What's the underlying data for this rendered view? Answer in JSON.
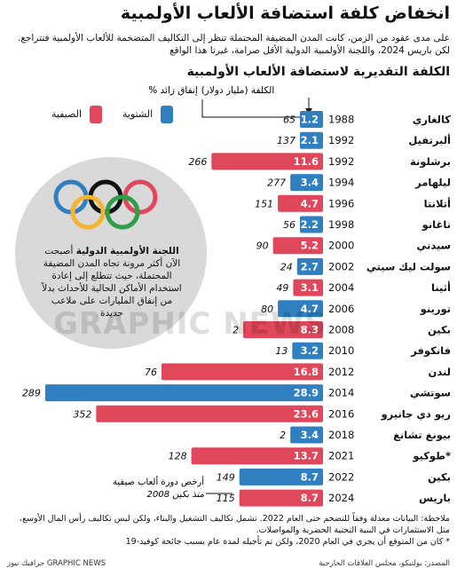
{
  "title": "انخفاض كلفة استضافة الألعاب الأولمبية",
  "intro_line1": "على مدى عقود من الزمن، كانت المدن المضيفة المحتملة تنظر إلى التكاليف المتضخمة للألعاب الأولمبية فتتراجع.",
  "intro_line2": "لكن باريس 2024، واللجنة الأولمبية الدولية الأقل صرامة، غيرتا هذا الواقع",
  "legend": {
    "summer": "الصيفية",
    "winter": "الشتوية",
    "summer_color": "#e0475a",
    "winter_color": "#2f7fc1"
  },
  "ioc_note_bold": "اللجنة الأولمبية الدولية",
  "ioc_note_rest": "أصبحت الآن أكثر مرونة تجاه المدن المضيفة المحتملة، حيث تتطلع إلى إعادة استخدام الأماكن الحالية للأحداث بدلاً من إنفاق المليارات على ملاعب جديدة",
  "footnote_line1": "ملاحظة: البيانات معدلة وفقاً للتضخم حتى العام 2022. تشمل تكاليف التشغيل والبناء، ولكن ليس تكاليف رأس المال الأوسع،",
  "footnote_line2": "مثل الاستثمارات في البنية التحتية الحضرية والمواصلات.",
  "footnote_line3": "* كان من المتوقع أن يجري في العام 2020، ولكن تم تأجيله لمدة عام بسبب جائحة كوفيد-19",
  "source": "المصدر: بولتيكو، مجلس العلاقات الخارجية",
  "brand": "جرافيك نيوز GRAPHIC NEWS",
  "watermark": "GRAPHIC NEWS",
  "chart_data": {
    "type": "bar",
    "title": "الكلفة التقديرية لاستضافة الألعاب الأولمبية",
    "value_label": "الكلفة (مليار دولار)",
    "overrun_label": "% إنفاق زائد",
    "annotation": "أرخص دورة ألعاب صيفية منذ بكين 2008",
    "colors": {
      "summer": "#e0475a",
      "winter": "#2f7fc1"
    },
    "xlim": [
      0,
      30
    ],
    "rows": [
      {
        "city": "كالغاري",
        "year": "1988",
        "season": "winter",
        "cost": 1.2,
        "overrun": "65"
      },
      {
        "city": "ألبرتفيل",
        "year": "1992",
        "season": "winter",
        "cost": 2.1,
        "overrun": "137"
      },
      {
        "city": "برشلونة",
        "year": "1992",
        "season": "summer",
        "cost": 11.6,
        "overrun": "266"
      },
      {
        "city": "ليلهامر",
        "year": "1994",
        "season": "winter",
        "cost": 3.4,
        "overrun": "277"
      },
      {
        "city": "أتلانتا",
        "year": "1996",
        "season": "summer",
        "cost": 4.7,
        "overrun": "151"
      },
      {
        "city": "ناغانو",
        "year": "1998",
        "season": "winter",
        "cost": 2.2,
        "overrun": "56"
      },
      {
        "city": "سيدني",
        "year": "2000",
        "season": "summer",
        "cost": 5.2,
        "overrun": "90"
      },
      {
        "city": "سولت ليك سيتي",
        "year": "2002",
        "season": "winter",
        "cost": 2.7,
        "overrun": "24"
      },
      {
        "city": "أثينا",
        "year": "2004",
        "season": "summer",
        "cost": 3.1,
        "overrun": "49"
      },
      {
        "city": "تورينو",
        "year": "2006",
        "season": "winter",
        "cost": 4.7,
        "overrun": "80"
      },
      {
        "city": "بكين",
        "year": "2008",
        "season": "summer",
        "cost": 8.3,
        "overrun": "2"
      },
      {
        "city": "فانكوفر",
        "year": "2010",
        "season": "winter",
        "cost": 3.2,
        "overrun": "13"
      },
      {
        "city": "لندن",
        "year": "2012",
        "season": "summer",
        "cost": 16.8,
        "overrun": "76"
      },
      {
        "city": "سوتشي",
        "year": "2014",
        "season": "winter",
        "cost": 28.9,
        "overrun": "289"
      },
      {
        "city": "ريو دي جانيرو",
        "year": "2016",
        "season": "summer",
        "cost": 23.6,
        "overrun": "352"
      },
      {
        "city": "بيونغ تشانغ",
        "year": "2018",
        "season": "winter",
        "cost": 3.4,
        "overrun": "2"
      },
      {
        "city": "طوكيو*",
        "year": "2021",
        "season": "summer",
        "cost": 13.7,
        "overrun": "128"
      },
      {
        "city": "بكين",
        "year": "2022",
        "season": "winter",
        "cost": 8.7,
        "overrun": "149"
      },
      {
        "city": "باريس",
        "year": "2024",
        "season": "summer",
        "cost": 8.7,
        "overrun": "115"
      }
    ]
  }
}
